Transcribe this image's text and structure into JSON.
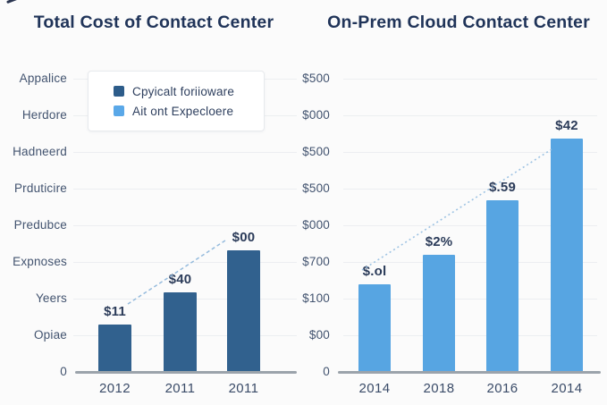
{
  "page": {
    "background": "#fbfbfb"
  },
  "colors": {
    "title_text": "#203459",
    "axis_text": "#42536f",
    "bar_label_text": "#2b3b59",
    "gridline": "#eceef1",
    "axis_line": "#9ba3ab",
    "trend_line": "#8ab4d9",
    "legend_bg": "#ffffff",
    "legend_border": "#e7eaed"
  },
  "chart_data": [
    {
      "type": "bar",
      "title": "Total Cost of Contact Center",
      "categories": [
        "2012",
        "2011",
        "2011"
      ],
      "values": [
        53,
        89,
        136
      ],
      "value_unit": "px",
      "ylim": [
        0,
        328
      ],
      "bar_labels": [
        "$11",
        "$40",
        "$00"
      ],
      "ytick_labels": [
        "Appalice",
        "Herdore",
        "Hadneerd",
        "Prduticire",
        "Predubce",
        "Expnoses",
        "Yeers",
        "Opiae",
        "0"
      ],
      "bar_color": "#31618e",
      "grid": true,
      "trend_line": true,
      "legend_position": "upper-left",
      "legend": [
        {
          "label": "Cpyicalt foriioware",
          "color": "#2d5c8a"
        },
        {
          "label": "Ait ont Expecloere",
          "color": "#5aa8e8"
        }
      ]
    },
    {
      "type": "bar",
      "title": "On-Prem Cloud Contact Center",
      "categories": [
        "2014",
        "2018",
        "2016",
        "2014"
      ],
      "values": [
        98,
        131,
        192,
        261
      ],
      "value_unit": "px",
      "ylim": [
        0,
        328
      ],
      "bar_labels": [
        "$.ol",
        "$2%",
        "$.59",
        "$42"
      ],
      "ytick_labels": [
        "$500",
        "$000",
        "$500",
        "$500",
        "$000",
        "$700",
        "$100",
        "$00",
        "0"
      ],
      "bar_color": "#57a5e2",
      "grid": true,
      "trend_line": true
    }
  ]
}
